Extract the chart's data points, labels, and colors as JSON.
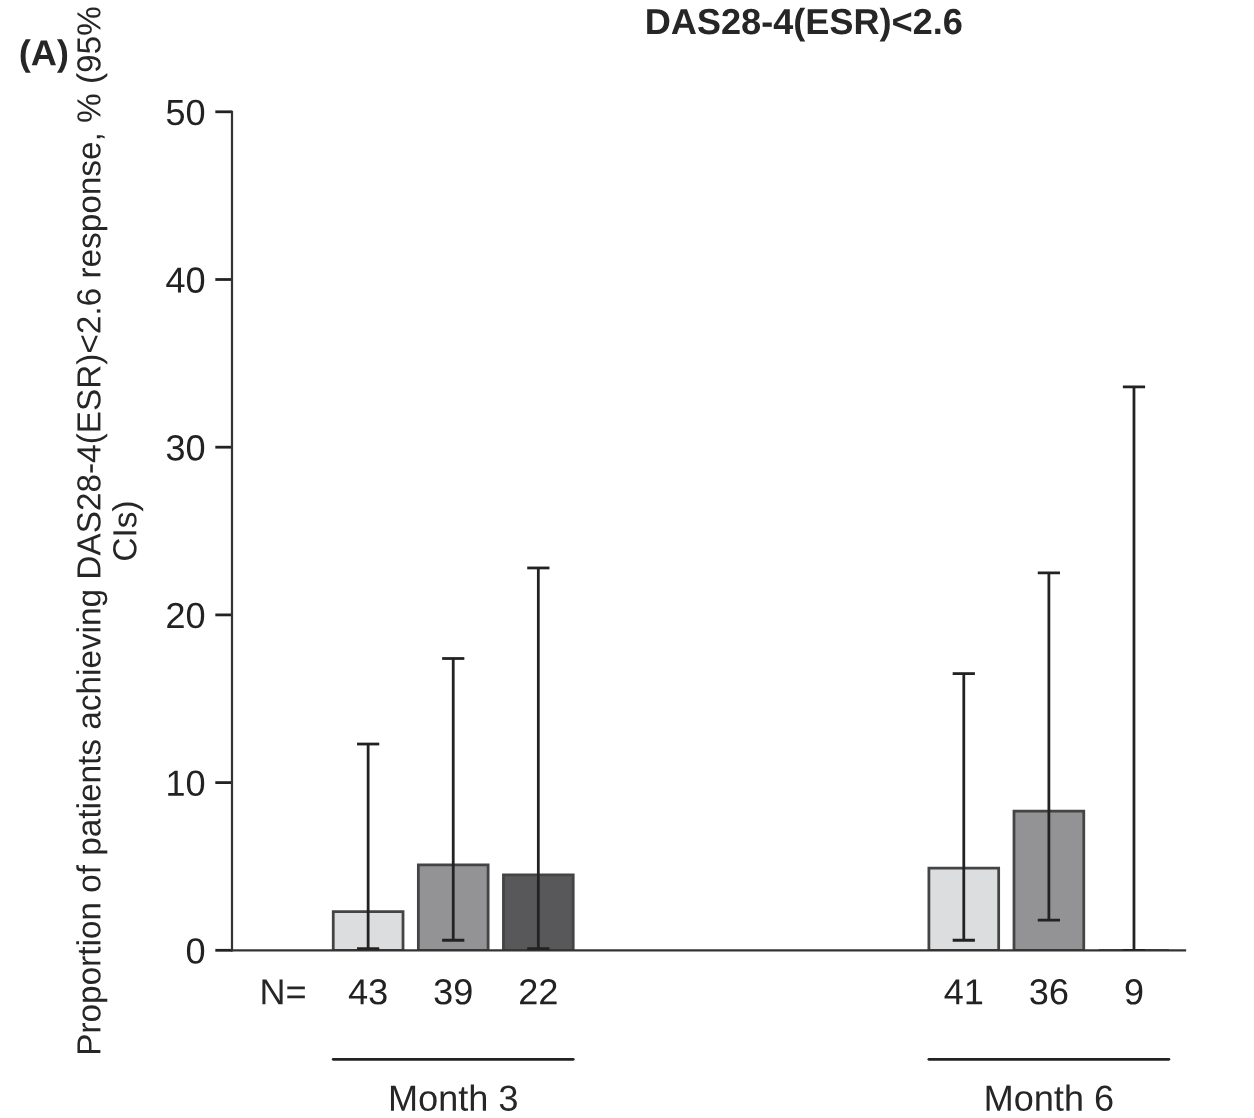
{
  "chart_data": {
    "type": "bar",
    "title": "DAS28-4(ESR)<2.6",
    "ylabel": "Proportion of patients achieving DAS28-4(ESR)<2.6 response, % (95% CIs)",
    "categories": [
      "43",
      "39",
      "22",
      null,
      null,
      null,
      null,
      "41",
      "36",
      "9"
    ],
    "values": [
      2.3,
      5.1,
      4.5,
      null,
      null,
      null,
      null,
      4.9,
      8.3,
      0
    ],
    "errors": [
      [
        0.1,
        12.3
      ],
      [
        0.6,
        17.4
      ],
      [
        0.1,
        22.8
      ],
      null,
      null,
      null,
      null,
      [
        0.6,
        16.5
      ],
      [
        1.8,
        22.5
      ],
      [
        0,
        33.6
      ]
    ],
    "colors": [
      "#dcdddf",
      "#939395",
      "#58585a",
      null,
      null,
      null,
      null,
      "#dcdddf",
      "#939395",
      "#58585a"
    ],
    "ylim": [
      0,
      50
    ],
    "yticks": [
      0,
      10,
      20,
      30,
      40,
      50
    ],
    "grid": false,
    "legend": false,
    "annotations": [
      "(A)",
      "N=",
      "Month 3",
      "Month 6"
    ]
  }
}
